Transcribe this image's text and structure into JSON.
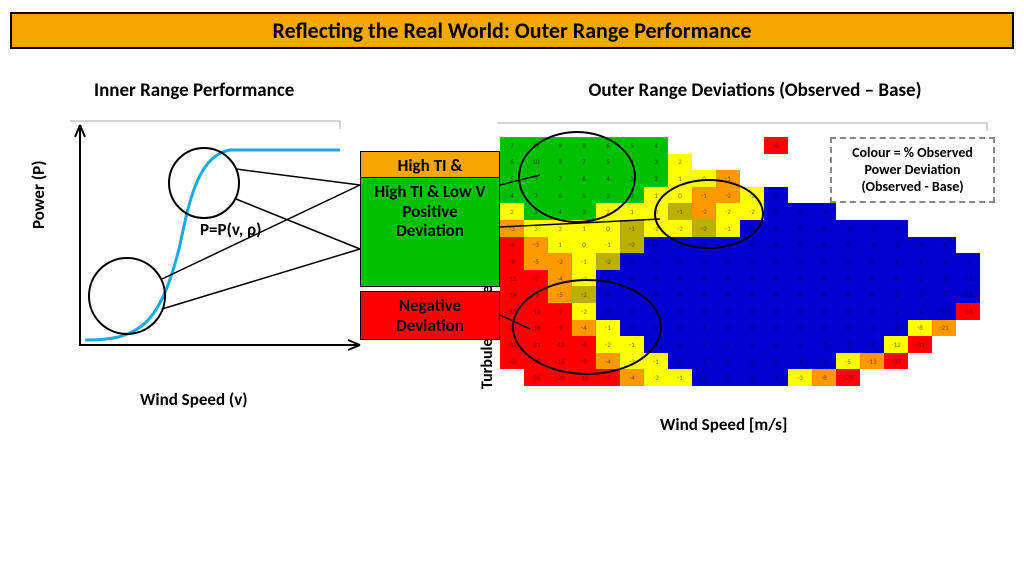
{
  "title": "Reflecting the Real World: Outer Range Performance",
  "title_bg": "#f5a600",
  "inner": {
    "title": "Inner Range Performance",
    "ylabel": "Power (P)",
    "xlabel": "Wind Speed (v)",
    "equation": "P=P(v, ρ)",
    "curve_color": "#1aa9e0",
    "axis_color": "#000000"
  },
  "outer": {
    "title": "Outer Range Deviations (Observed – Base)",
    "ylabel": "Turbulence Intensity [%]",
    "xlabel": "Wind Speed [m/s]",
    "legend": "Colour = % Observed Power Deviation (Observed - Base)"
  },
  "annot": {
    "high_ti_partial": "High TI &",
    "high_ti_full": "High TI & Low V Positive Deviation",
    "neg": "Negative Deviation",
    "colors": {
      "orange": "#f5a600",
      "green": "#00c000",
      "red": "#ff0000"
    }
  },
  "heatmap": {
    "palette": {
      "g": "#00c000",
      "y": "#ffff00",
      "o": "#ff9900",
      "r": "#ff0000",
      "b": "#0000d0",
      "lb": "#5060ff",
      "gr": "#b9b000",
      "x": "transparent"
    },
    "cols": 20,
    "rows": 15,
    "data": [
      [
        "g",
        "g",
        "g",
        "g",
        "g",
        "g",
        "g",
        "x",
        "x",
        "x",
        "x",
        "r",
        "x",
        "x",
        "x",
        "x",
        "x",
        "x",
        "x",
        "x"
      ],
      [
        "g",
        "g",
        "g",
        "g",
        "g",
        "g",
        "g",
        "y",
        "x",
        "x",
        "x",
        "x",
        "x",
        "x",
        "x",
        "x",
        "x",
        "x",
        "x",
        "x"
      ],
      [
        "g",
        "g",
        "g",
        "g",
        "g",
        "g",
        "g",
        "y",
        "y",
        "o",
        "x",
        "x",
        "x",
        "x",
        "x",
        "x",
        "x",
        "x",
        "x",
        "x"
      ],
      [
        "g",
        "g",
        "g",
        "g",
        "g",
        "g",
        "y",
        "y",
        "o",
        "o",
        "y",
        "b",
        "x",
        "x",
        "x",
        "x",
        "x",
        "x",
        "x",
        "x"
      ],
      [
        "y",
        "g",
        "g",
        "g",
        "y",
        "y",
        "y",
        "gr",
        "o",
        "y",
        "y",
        "b",
        "b",
        "b",
        "x",
        "x",
        "x",
        "x",
        "x",
        "x"
      ],
      [
        "o",
        "y",
        "y",
        "y",
        "y",
        "gr",
        "y",
        "y",
        "gr",
        "y",
        "b",
        "b",
        "b",
        "b",
        "b",
        "b",
        "b",
        "x",
        "x",
        "x"
      ],
      [
        "r",
        "o",
        "y",
        "y",
        "y",
        "gr",
        "b",
        "b",
        "b",
        "b",
        "b",
        "b",
        "b",
        "b",
        "b",
        "b",
        "b",
        "b",
        "b",
        "x"
      ],
      [
        "r",
        "o",
        "o",
        "y",
        "gr",
        "b",
        "b",
        "b",
        "b",
        "b",
        "b",
        "b",
        "b",
        "b",
        "b",
        "b",
        "b",
        "b",
        "b",
        "b"
      ],
      [
        "r",
        "r",
        "o",
        "y",
        "b",
        "b",
        "b",
        "b",
        "b",
        "b",
        "b",
        "b",
        "b",
        "b",
        "b",
        "b",
        "b",
        "b",
        "b",
        "b"
      ],
      [
        "r",
        "r",
        "o",
        "gr",
        "b",
        "b",
        "b",
        "b",
        "b",
        "b",
        "b",
        "b",
        "b",
        "b",
        "b",
        "b",
        "b",
        "b",
        "b",
        "b"
      ],
      [
        "r",
        "r",
        "r",
        "y",
        "b",
        "b",
        "b",
        "b",
        "b",
        "b",
        "b",
        "b",
        "b",
        "b",
        "b",
        "b",
        "b",
        "b",
        "b",
        "r"
      ],
      [
        "r",
        "r",
        "r",
        "o",
        "y",
        "b",
        "b",
        "b",
        "b",
        "b",
        "b",
        "b",
        "b",
        "b",
        "b",
        "b",
        "b",
        "y",
        "o",
        "x"
      ],
      [
        "r",
        "r",
        "r",
        "r",
        "y",
        "y",
        "b",
        "b",
        "b",
        "b",
        "b",
        "b",
        "b",
        "b",
        "b",
        "b",
        "y",
        "r",
        "x",
        "x"
      ],
      [
        "r",
        "r",
        "r",
        "r",
        "o",
        "y",
        "y",
        "b",
        "b",
        "b",
        "b",
        "b",
        "b",
        "b",
        "y",
        "o",
        "r",
        "x",
        "x",
        "x"
      ],
      [
        "x",
        "r",
        "r",
        "r",
        "r",
        "o",
        "y",
        "y",
        "b",
        "b",
        "b",
        "b",
        "y",
        "o",
        "r",
        "x",
        "x",
        "x",
        "x",
        "x"
      ]
    ],
    "values": [
      [
        7,
        12,
        9,
        8,
        6,
        5,
        4,
        null,
        null,
        null,
        null,
        -8,
        null,
        null,
        null,
        null,
        null,
        null,
        null,
        null
      ],
      [
        6,
        10,
        8,
        7,
        5,
        4,
        3,
        2,
        null,
        null,
        null,
        null,
        null,
        null,
        null,
        null,
        null,
        null,
        null,
        null
      ],
      [
        5,
        9,
        7,
        6,
        4,
        3,
        2,
        1,
        0,
        -1,
        null,
        null,
        null,
        null,
        null,
        null,
        null,
        null,
        null,
        null
      ],
      [
        4,
        7,
        6,
        5,
        3,
        2,
        1,
        0,
        -1,
        -2,
        -2,
        0,
        null,
        null,
        null,
        null,
        null,
        null,
        null,
        null
      ],
      [
        2,
        5,
        4,
        3,
        2,
        1,
        0,
        -1,
        -2,
        -2,
        -2,
        0,
        0,
        -1,
        null,
        null,
        null,
        null,
        null,
        null
      ],
      [
        -3,
        3,
        2,
        1,
        0,
        -1,
        -2,
        -2,
        -2,
        -1,
        0,
        0,
        0,
        0,
        -1,
        -2,
        -3,
        null,
        null,
        null
      ],
      [
        -6,
        -3,
        1,
        0,
        -1,
        -2,
        0,
        0,
        0,
        0,
        0,
        0,
        0,
        0,
        0,
        -1,
        -2,
        -3,
        -4,
        null
      ],
      [
        -9,
        -5,
        -2,
        -1,
        -2,
        0,
        0,
        0,
        0,
        0,
        0,
        0,
        0,
        0,
        0,
        0,
        -1,
        -2,
        -4,
        -7
      ],
      [
        -11,
        -7,
        -4,
        -2,
        0,
        0,
        0,
        0,
        0,
        0,
        0,
        0,
        0,
        0,
        0,
        0,
        0,
        -2,
        -5,
        -11
      ],
      [
        -14,
        -9,
        -5,
        -2,
        0,
        0,
        0,
        0,
        0,
        0,
        0,
        0,
        0,
        0,
        0,
        0,
        -1,
        -3,
        -7,
        -18
      ],
      [
        -18,
        -12,
        -7,
        -2,
        0,
        0,
        0,
        0,
        0,
        0,
        0,
        0,
        0,
        0,
        0,
        0,
        -2,
        -4,
        -12,
        -31
      ],
      [
        -26,
        -16,
        -9,
        -4,
        -1,
        0,
        0,
        0,
        1,
        0,
        0,
        0,
        0,
        0,
        0,
        -1,
        -3,
        -8,
        -21,
        null
      ],
      [
        -33,
        -21,
        -12,
        -6,
        -2,
        -1,
        0,
        0,
        1,
        1,
        0,
        0,
        0,
        -1,
        -2,
        -4,
        -12,
        -31,
        null,
        null
      ],
      [
        -42,
        -28,
        -16,
        -9,
        -4,
        -2,
        -1,
        0,
        1,
        0,
        0,
        0,
        -1,
        -2,
        -5,
        -13,
        -30,
        null,
        null,
        null
      ],
      [
        null,
        -36,
        -22,
        -13,
        -7,
        -4,
        -2,
        -1,
        0,
        0,
        0,
        -1,
        -3,
        -8,
        -22,
        null,
        null,
        null,
        null,
        null
      ]
    ]
  }
}
